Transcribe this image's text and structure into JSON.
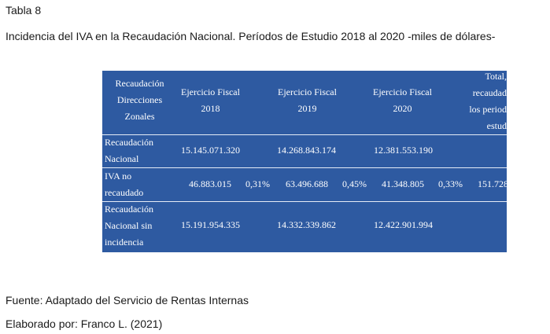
{
  "tabla": "Tabla 8",
  "titulo": "Incidencia del IVA en la Recaudación Nacional. Períodos de Estudio 2018 al 2020 -miles de dólares-",
  "header": {
    "col0": [
      "Recaudación",
      "Direcciones",
      "Zonales"
    ],
    "col1": [
      "Ejercicio Fiscal",
      "2018"
    ],
    "col2": [
      "Ejercicio Fiscal",
      "2019"
    ],
    "col3": [
      "Ejercicio Fiscal",
      "2020"
    ],
    "col4": [
      "Total,",
      "recaudad",
      "los period",
      "estud"
    ]
  },
  "rows": [
    {
      "label": [
        "Recaudación",
        "Nacional"
      ],
      "v2018": "15.145.071.320",
      "p2018": "",
      "v2019": "14.268.843.174",
      "p2019": "",
      "v2020": "12.381.553.190",
      "p2020": "",
      "total": ""
    },
    {
      "label": [
        "IVA no",
        "recaudado"
      ],
      "v2018": "46.883.015",
      "p2018": "0,31%",
      "v2019": "63.496.688",
      "p2019": "0,45%",
      "v2020": "41.348.805",
      "p2020": "0,33%",
      "total": "151.728"
    },
    {
      "label": [
        "Recaudación",
        "Nacional sin",
        "incidencia"
      ],
      "v2018": "15.191.954.335",
      "p2018": "",
      "v2019": "14.332.339.862",
      "p2019": "",
      "v2020": "12.422.901.994",
      "p2020": "",
      "total": ""
    }
  ],
  "fuente": "Fuente: Adaptado del Servicio de Rentas Internas",
  "elaborado": "Elaborado por: Franco L. (2021)",
  "colors": {
    "table_bg": "#2e5aa1",
    "table_text": "#ffffff"
  }
}
